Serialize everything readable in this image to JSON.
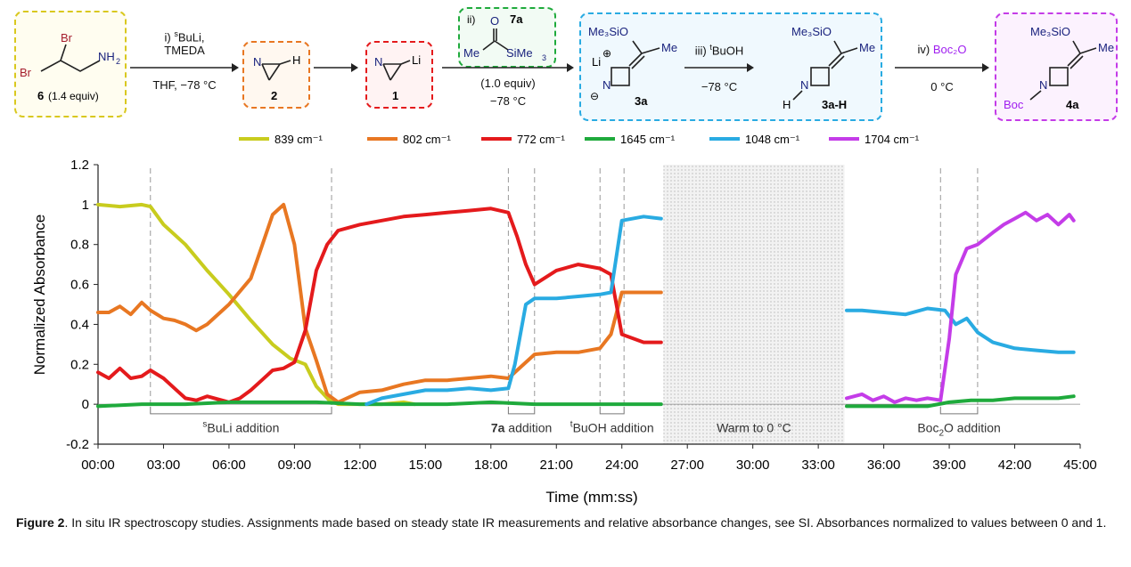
{
  "scheme": {
    "sm": {
      "br_top": "Br",
      "br_left": "Br",
      "nh2": "NH",
      "nh2_sub": "2",
      "label": "6",
      "equiv": "(1.4 equiv)"
    },
    "step1": {
      "line1_pre": "i) ",
      "line1_sup": "s",
      "line1_post": "BuLi,",
      "line2": "TMEDA",
      "line3": "THF, −78 °C"
    },
    "cmpd2": {
      "label": "2",
      "n": "N",
      "h": "H"
    },
    "cmpd1": {
      "label": "1",
      "n": "N",
      "li": "Li"
    },
    "step2": {
      "roman": "ii)",
      "reagent_label": "7a",
      "o": "O",
      "me": "Me",
      "sime3": "SiMe",
      "sime3_sub": "3",
      "equiv": "(1.0 equiv)",
      "temp": "−78 °C"
    },
    "cmpd3a": {
      "label": "3a",
      "me3sio": "Me₃SiO",
      "me": "Me",
      "li": "Li",
      "n": "N",
      "plus": "⊕",
      "minus": "⊖"
    },
    "step3": {
      "pre": "iii) ",
      "sup": "t",
      "post": "BuOH",
      "temp": "−78 °C"
    },
    "cmpd3aH": {
      "label": "3a-H",
      "me3sio": "Me₃SiO",
      "me": "Me",
      "n": "N",
      "h": "H"
    },
    "step4": {
      "pre": "iv) ",
      "reagent": "Boc₂O",
      "temp": "0 °C"
    },
    "cmpd4a": {
      "label": "4a",
      "me3sio": "Me₃SiO",
      "me": "Me",
      "n": "N",
      "boc": "Boc"
    }
  },
  "chart_data": {
    "type": "line",
    "xlabel": "Time (mm:ss)",
    "ylabel": "Normalized Absorbance",
    "xlim": [
      0,
      45
    ],
    "ylim": [
      -0.2,
      1.2
    ],
    "x_ticks": [
      0,
      3,
      6,
      9,
      12,
      15,
      18,
      21,
      24,
      27,
      30,
      33,
      36,
      39,
      42,
      45
    ],
    "x_tick_labels": [
      "00:00",
      "03:00",
      "06:00",
      "09:00",
      "12:00",
      "15:00",
      "18:00",
      "21:00",
      "24:00",
      "27:00",
      "30:00",
      "33:00",
      "36:00",
      "39:00",
      "42:00",
      "45:00"
    ],
    "y_ticks": [
      -0.2,
      0,
      0.2,
      0.4,
      0.6,
      0.8,
      1,
      1.2
    ],
    "y_tick_labels": [
      "-0.2",
      "0",
      "0.2",
      "0.4",
      "0.6",
      "0.8",
      "1",
      "1.2"
    ],
    "legend": {
      "placement": "top"
    },
    "series": [
      {
        "name": "839 cm⁻¹",
        "color": "#c8cc1e",
        "x": [
          0,
          1,
          2,
          2.4,
          3,
          4,
          5,
          6,
          7,
          8,
          8.8,
          9.5,
          10,
          10.6,
          11,
          12,
          13,
          14,
          14.5
        ],
        "y": [
          1.0,
          0.99,
          1.0,
          0.99,
          0.9,
          0.8,
          0.67,
          0.55,
          0.42,
          0.3,
          0.23,
          0.2,
          0.09,
          0.02,
          0.0,
          0.0,
          0.0,
          0.01,
          0.0
        ]
      },
      {
        "name": "802 cm⁻¹",
        "color": "#e87722",
        "x": [
          0,
          0.5,
          1,
          1.5,
          2,
          2.4,
          3,
          3.5,
          4,
          4.5,
          5,
          6,
          7,
          7.5,
          8,
          8.5,
          9,
          9.5,
          10,
          10.5,
          11,
          12,
          13,
          14,
          15,
          16,
          17,
          18,
          18.8,
          19.2,
          20,
          21,
          22,
          23,
          23.5,
          24,
          25,
          25.8
        ],
        "y": [
          0.46,
          0.46,
          0.49,
          0.45,
          0.51,
          0.47,
          0.43,
          0.42,
          0.4,
          0.37,
          0.4,
          0.5,
          0.63,
          0.79,
          0.95,
          1.0,
          0.8,
          0.38,
          0.22,
          0.05,
          0.01,
          0.06,
          0.07,
          0.1,
          0.12,
          0.12,
          0.13,
          0.14,
          0.13,
          0.17,
          0.25,
          0.26,
          0.26,
          0.28,
          0.35,
          0.56,
          0.56,
          0.56
        ]
      },
      {
        "name": "772 cm⁻¹",
        "color": "#e41a1c",
        "x": [
          0,
          0.5,
          1,
          1.5,
          2,
          2.4,
          3,
          3.5,
          4,
          4.5,
          5,
          6,
          6.5,
          7,
          7.5,
          8,
          8.5,
          9,
          9.5,
          10,
          10.5,
          11,
          12,
          13,
          14,
          15,
          16,
          17,
          18,
          18.8,
          19.2,
          19.6,
          20,
          21,
          22,
          23,
          23.5,
          24,
          25,
          25.8
        ],
        "y": [
          0.16,
          0.13,
          0.18,
          0.13,
          0.14,
          0.17,
          0.13,
          0.08,
          0.03,
          0.02,
          0.04,
          0.01,
          0.03,
          0.07,
          0.12,
          0.17,
          0.18,
          0.21,
          0.37,
          0.67,
          0.8,
          0.87,
          0.9,
          0.92,
          0.94,
          0.95,
          0.96,
          0.97,
          0.98,
          0.96,
          0.84,
          0.7,
          0.6,
          0.67,
          0.7,
          0.68,
          0.65,
          0.35,
          0.31,
          0.31
        ]
      },
      {
        "name": "1645 cm⁻¹",
        "color": "#1faa3c",
        "x": [
          0,
          2,
          4,
          6,
          8,
          10,
          12,
          14,
          16,
          18,
          20,
          22,
          24,
          25.8
        ],
        "y": [
          -0.01,
          0.0,
          0.0,
          0.01,
          0.01,
          0.01,
          0.0,
          0.0,
          0.0,
          0.01,
          0.0,
          0.0,
          0.0,
          0.0
        ],
        "x2": [
          34.3,
          36,
          38,
          39,
          40,
          41,
          42,
          43,
          44,
          44.7
        ],
        "y2": [
          -0.01,
          -0.01,
          -0.01,
          0.01,
          0.02,
          0.02,
          0.03,
          0.03,
          0.03,
          0.04
        ]
      },
      {
        "name": "1048 cm⁻¹",
        "color": "#29abe2",
        "x": [
          12.3,
          13,
          14,
          15,
          16,
          17,
          18,
          18.8,
          19.1,
          19.6,
          20,
          21,
          22,
          23,
          23.5,
          24,
          25,
          25.8
        ],
        "y": [
          0.0,
          0.03,
          0.05,
          0.07,
          0.07,
          0.08,
          0.07,
          0.08,
          0.2,
          0.5,
          0.53,
          0.53,
          0.54,
          0.55,
          0.56,
          0.92,
          0.94,
          0.93
        ],
        "x2": [
          34.3,
          35,
          36,
          37,
          38,
          38.8,
          39.3,
          39.8,
          40.3,
          41,
          42,
          43,
          44,
          44.7
        ],
        "y2": [
          0.47,
          0.47,
          0.46,
          0.45,
          0.48,
          0.47,
          0.4,
          0.43,
          0.36,
          0.31,
          0.28,
          0.27,
          0.26,
          0.26
        ]
      },
      {
        "name": "1704 cm⁻¹",
        "color": "#c43ce8",
        "x": [
          34.3,
          35,
          35.5,
          36,
          36.5,
          37,
          37.5,
          38,
          38.6,
          39,
          39.3,
          39.8,
          40.3,
          41,
          41.5,
          42,
          42.5,
          43,
          43.5,
          44,
          44.5,
          44.7
        ],
        "y": [
          0.03,
          0.05,
          0.02,
          0.04,
          0.01,
          0.03,
          0.02,
          0.03,
          0.02,
          0.33,
          0.65,
          0.78,
          0.8,
          0.86,
          0.9,
          0.93,
          0.96,
          0.92,
          0.95,
          0.9,
          0.95,
          0.92
        ]
      }
    ],
    "annotations": [
      {
        "label_sup": "s",
        "label_post": "BuLi addition",
        "x_start": 2.4,
        "x_end": 10.7
      },
      {
        "label_bold": "7a",
        "label_post": " addition",
        "x_start": 18.8,
        "x_end": 20.0
      },
      {
        "label_sup": "t",
        "label_post": "BuOH addition",
        "x_start": 23.0,
        "x_end": 24.1
      },
      {
        "label_post": "Warm to 0 °C",
        "x_start": 25.9,
        "x_end": 34.2,
        "shaded": true
      },
      {
        "label_pre": "Boc",
        "label_sub": "2",
        "label_post": "O addition",
        "x_start": 38.6,
        "x_end": 40.3
      }
    ]
  },
  "caption": {
    "bold": "Figure 2",
    "text": ". In situ IR spectroscopy studies. Assignments made based on steady state IR measurements and relative absorbance changes, see SI. Absorbances normalized to values between 0 and 1."
  }
}
